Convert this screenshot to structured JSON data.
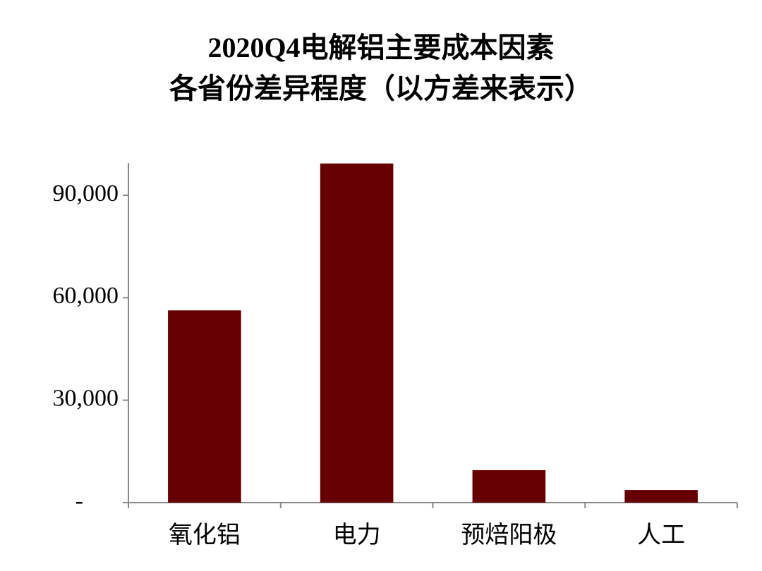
{
  "chart_data": {
    "type": "bar",
    "title_lines": [
      "2020Q4电解铝主要成本因素",
      "各省份差异程度（以方差来表示）"
    ],
    "categories": [
      "氧化铝",
      "电力",
      "预焙阳极",
      "人工"
    ],
    "values": [
      56300,
      99300,
      9500,
      3700
    ],
    "color": "#660000",
    "ylim": [
      0,
      100000
    ],
    "yticks": [
      {
        "value": 0,
        "label": "-"
      },
      {
        "value": 30000,
        "label": "30,000"
      },
      {
        "value": 60000,
        "label": "60,000"
      },
      {
        "value": 90000,
        "label": "90,000"
      }
    ],
    "grid": false
  }
}
